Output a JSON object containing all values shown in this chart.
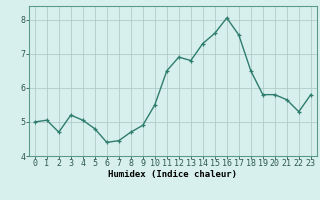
{
  "x": [
    0,
    1,
    2,
    3,
    4,
    5,
    6,
    7,
    8,
    9,
    10,
    11,
    12,
    13,
    14,
    15,
    16,
    17,
    18,
    19,
    20,
    21,
    22,
    23
  ],
  "y": [
    5.0,
    5.05,
    4.7,
    5.2,
    5.05,
    4.8,
    4.4,
    4.45,
    4.7,
    4.9,
    5.5,
    6.5,
    6.9,
    6.8,
    7.3,
    7.6,
    8.05,
    7.55,
    6.5,
    5.8,
    5.8,
    5.65,
    5.3,
    5.8
  ],
  "line_color": "#2e7d6e",
  "marker": "+",
  "marker_size": 3,
  "linewidth": 1.0,
  "bg_color": "#d8f0ed",
  "grid_color": "#b0ccc8",
  "grid_color_major": "#9fbfba",
  "xlabel": "Humidex (Indice chaleur)",
  "ylim": [
    4.0,
    8.4
  ],
  "xlim": [
    -0.5,
    23.5
  ],
  "yticks": [
    4,
    5,
    6,
    7,
    8
  ],
  "xticks": [
    0,
    1,
    2,
    3,
    4,
    5,
    6,
    7,
    8,
    9,
    10,
    11,
    12,
    13,
    14,
    15,
    16,
    17,
    18,
    19,
    20,
    21,
    22,
    23
  ],
  "label_fontsize": 6.5,
  "tick_fontsize": 6.0,
  "spine_color": "#5a9a8a"
}
